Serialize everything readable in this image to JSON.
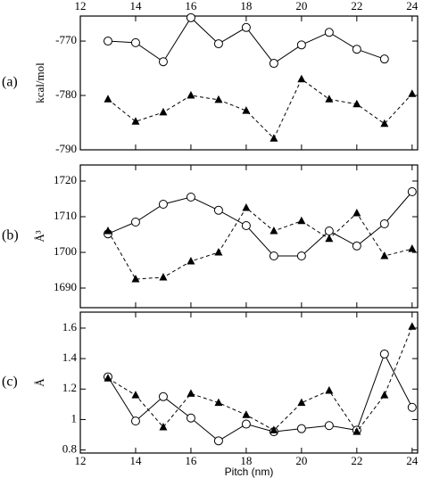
{
  "chart_data": [
    {
      "type": "line",
      "panel_label": "(a)",
      "ylabel": "kcal/mol",
      "xtick_labels": "top",
      "x": [
        13,
        14,
        15,
        16,
        17,
        18,
        19,
        20,
        21,
        22,
        23,
        24
      ],
      "xlim": [
        12,
        24.2
      ],
      "xticks": [
        12,
        14,
        16,
        18,
        20,
        22,
        24
      ],
      "ylim": [
        -790,
        -765.4
      ],
      "yticks": [
        -770,
        -780,
        -790
      ],
      "series": [
        {
          "color": "#000000",
          "marker": "circle",
          "linestyle": "solid",
          "values": [
            -770,
            -770.3,
            -773.8,
            -765.7,
            -770.5,
            -767.5,
            -774.1,
            -770.7,
            -768.4,
            -771.5,
            -773.3,
            null
          ]
        },
        {
          "color": "#000000",
          "marker": "triangle",
          "linestyle": "dashed",
          "values": [
            -780.7,
            -784.8,
            -783.1,
            -780,
            -780.8,
            -782.8,
            -787.9,
            -777,
            -780.7,
            -781.6,
            -785.2,
            -779.7
          ]
        }
      ]
    },
    {
      "type": "line",
      "panel_label": "(b)",
      "ylabel": "Å³",
      "xtick_labels": "none",
      "x": [
        13,
        14,
        15,
        16,
        17,
        18,
        19,
        20,
        21,
        22,
        23,
        24
      ],
      "xlim": [
        12,
        24.2
      ],
      "xticks": [
        12,
        14,
        16,
        18,
        20,
        22,
        24
      ],
      "ylim": [
        1684.5,
        1724.5
      ],
      "yticks": [
        1690,
        1700,
        1710,
        1720
      ],
      "series": [
        {
          "color": "#000000",
          "marker": "circle",
          "linestyle": "solid",
          "values": [
            1705.2,
            1708.5,
            1713.5,
            1715.5,
            1711.8,
            1707.5,
            1699,
            1699,
            1706,
            1701.8,
            1708,
            1717
          ]
        },
        {
          "color": "#000000",
          "marker": "triangle",
          "linestyle": "dashed",
          "values": [
            1706,
            1692.5,
            1693,
            1697.5,
            1700,
            1712.5,
            1706,
            1708.8,
            1703.8,
            1711,
            1699,
            1701
          ]
        }
      ]
    },
    {
      "type": "line",
      "panel_label": "(c)",
      "ylabel": "Å",
      "xlabel": "Pitch (nm)",
      "xtick_labels": "bottom",
      "x": [
        13,
        14,
        15,
        16,
        17,
        18,
        19,
        20,
        21,
        22,
        23,
        24
      ],
      "xlim": [
        12,
        24.2
      ],
      "xticks": [
        12,
        14,
        16,
        18,
        20,
        22,
        24
      ],
      "ylim": [
        0.78,
        1.705
      ],
      "yticks": [
        0.8,
        1,
        1.2,
        1.4,
        1.6
      ],
      "series": [
        {
          "color": "#000000",
          "marker": "circle",
          "linestyle": "solid",
          "values": [
            1.28,
            0.99,
            1.15,
            1.01,
            0.86,
            0.97,
            0.92,
            0.94,
            0.96,
            0.93,
            1.43,
            1.08
          ]
        },
        {
          "color": "#000000",
          "marker": "triangle",
          "linestyle": "dashed",
          "values": [
            1.27,
            1.16,
            0.95,
            1.17,
            1.11,
            1.03,
            0.93,
            1.11,
            1.19,
            0.92,
            1.16,
            1.61
          ]
        }
      ]
    }
  ]
}
